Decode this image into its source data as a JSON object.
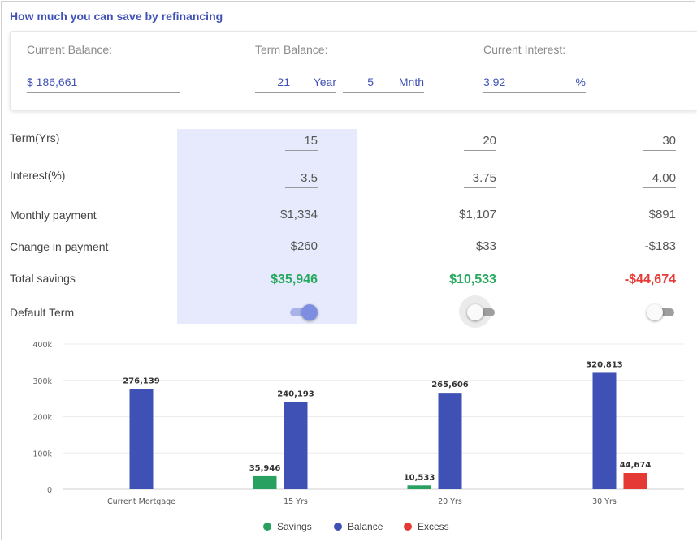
{
  "title": "How much you can save by refinancing",
  "inputs": {
    "current_balance_label": "Current Balance:",
    "current_balance_value": "$ 186,661",
    "term_balance_label": "Term Balance:",
    "term_years_value": "21",
    "term_years_unit": "Year",
    "term_months_value": "5",
    "term_months_unit": "Mnth",
    "current_interest_label": "Current Interest:",
    "current_interest_value": "3.92",
    "current_interest_unit": "%"
  },
  "rows": {
    "term": "Term(Yrs)",
    "interest": "Interest(%)",
    "monthly": "Monthly payment",
    "change": "Change in payment",
    "savings": "Total savings",
    "default": "Default Term"
  },
  "options": [
    {
      "term": "15",
      "interest": "3.5",
      "monthly": "$1,334",
      "change": "$260",
      "savings": "$35,946",
      "default_on": true
    },
    {
      "term": "20",
      "interest": "3.75",
      "monthly": "$1,107",
      "change": "$33",
      "savings": "$10,533",
      "default_on": false
    },
    {
      "term": "30",
      "interest": "4.00",
      "monthly": "$891",
      "change": "-$183",
      "savings": "-$44,674",
      "default_on": false
    }
  ],
  "colors": {
    "savings": "#27a060",
    "balance": "#3f51b5",
    "excess": "#e53935",
    "accent": "#3f51b5"
  },
  "chart_data": {
    "type": "bar",
    "categories": [
      "Current Mortgage",
      "15 Yrs",
      "20 Yrs",
      "30 Yrs"
    ],
    "series": [
      {
        "name": "Savings",
        "values": [
          null,
          35946,
          10533,
          null
        ],
        "labels": [
          "",
          "35,946",
          "10,533",
          ""
        ]
      },
      {
        "name": "Balance",
        "values": [
          276139,
          240193,
          265606,
          320813
        ],
        "labels": [
          "276,139",
          "240,193",
          "265,606",
          "320,813"
        ]
      },
      {
        "name": "Excess",
        "values": [
          null,
          null,
          null,
          44674
        ],
        "labels": [
          "",
          "",
          "",
          "44,674"
        ]
      }
    ],
    "yticks": [
      "400k",
      "300k",
      "200k",
      "100k",
      "0"
    ],
    "ylim": [
      0,
      400000
    ],
    "grid": true,
    "legend_position": "bottom"
  }
}
